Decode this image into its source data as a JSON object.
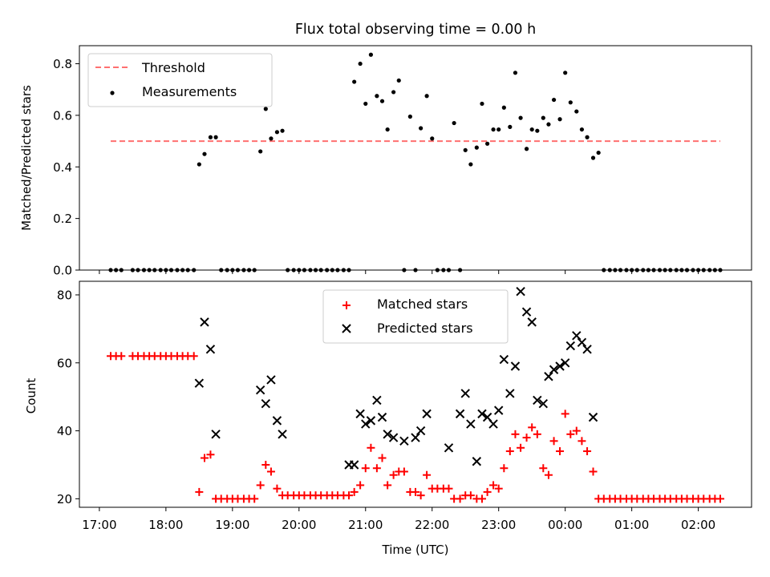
{
  "chart_data": [
    {
      "type": "scatter",
      "title": "Flux total observing time = 0.00 h",
      "ylabel": "Matched/Predicted stars",
      "xlabel": "",
      "x_unit": "hours after 17:00 UTC",
      "xlim": [
        -0.3,
        9.8
      ],
      "ylim": [
        0,
        0.87
      ],
      "yticks": [
        0.0,
        0.2,
        0.4,
        0.6,
        0.8
      ],
      "ytick_labels": [
        "0.0",
        "0.2",
        "0.4",
        "0.6",
        "0.8"
      ],
      "legend_position": "upper-left",
      "threshold": {
        "name": "Threshold",
        "value": 0.5,
        "x_start": 0.17,
        "x_end": 9.33,
        "color": "#ff7070"
      },
      "series": [
        {
          "name": "Measurements",
          "color": "#000000",
          "x": [
            0.17,
            0.25,
            0.33,
            0.5,
            0.58,
            0.67,
            0.75,
            0.83,
            0.92,
            1.0,
            1.08,
            1.17,
            1.25,
            1.33,
            1.42,
            1.5,
            1.58,
            1.67,
            1.75,
            1.83,
            1.92,
            2.0,
            2.08,
            2.17,
            2.25,
            2.33,
            2.42,
            2.5,
            2.58,
            2.67,
            2.75,
            2.83,
            2.92,
            3.0,
            3.08,
            3.17,
            3.25,
            3.33,
            3.42,
            3.5,
            3.58,
            3.67,
            3.75,
            3.83,
            3.92,
            4.0,
            4.08,
            4.17,
            4.25,
            4.33,
            4.42,
            4.5,
            4.58,
            4.67,
            4.75,
            4.83,
            4.92,
            5.0,
            5.08,
            5.17,
            5.25,
            5.33,
            5.42,
            5.5,
            5.58,
            5.67,
            5.75,
            5.83,
            5.92,
            6.0,
            6.08,
            6.17,
            6.25,
            6.33,
            6.42,
            6.5,
            6.58,
            6.67,
            6.75,
            6.83,
            6.92,
            7.0,
            7.08,
            7.17,
            7.25,
            7.33,
            7.42,
            7.5,
            7.58,
            7.67,
            7.75,
            7.83,
            7.92,
            8.0,
            8.08,
            8.17,
            8.25,
            8.33,
            8.42,
            8.5,
            8.58,
            8.67,
            8.75,
            8.83,
            8.92,
            9.0,
            9.08,
            9.17,
            9.25,
            9.33
          ],
          "y": [
            0,
            0,
            0,
            0,
            0,
            0,
            0,
            0,
            0,
            0,
            0,
            0,
            0,
            0,
            0,
            0.41,
            0.45,
            0.515,
            0.515,
            0,
            0,
            0,
            0,
            0,
            0,
            0,
            0.46,
            0.625,
            0.51,
            0.535,
            0.54,
            0,
            0,
            0,
            0,
            0,
            0,
            0,
            0,
            0,
            0,
            0,
            0,
            0.73,
            0.8,
            0.645,
            0.835,
            0.675,
            0.655,
            0.545,
            0.69,
            0.735,
            0,
            0.595,
            0,
            0.55,
            0.675,
            0.51,
            0,
            0,
            0,
            0.57,
            0,
            0.465,
            0.41,
            0.475,
            0.645,
            0.49,
            0.545,
            0.545,
            0.63,
            0.555,
            0.765,
            0.59,
            0.47,
            0.545,
            0.54,
            0.59,
            0.565,
            0.66,
            0.585,
            0.765,
            0.65,
            0.615,
            0.545,
            0.515,
            0.435,
            0.455,
            0,
            0,
            0,
            0,
            0,
            0,
            0,
            0,
            0,
            0,
            0,
            0,
            0,
            0,
            0,
            0,
            0,
            0,
            0,
            0,
            0,
            0
          ]
        }
      ]
    },
    {
      "type": "scatter",
      "title": "",
      "ylabel": "Count",
      "xlabel": "Time (UTC)",
      "x_unit": "hours after 17:00 UTC",
      "xlim": [
        -0.3,
        9.8
      ],
      "ylim": [
        17.5,
        84
      ],
      "yticks": [
        20,
        40,
        60,
        80
      ],
      "ytick_labels": [
        "20",
        "40",
        "60",
        "80"
      ],
      "xticks": [
        0,
        1,
        2,
        3,
        4,
        5,
        6,
        7,
        8,
        9
      ],
      "xtick_labels": [
        "17:00",
        "18:00",
        "19:00",
        "20:00",
        "21:00",
        "22:00",
        "23:00",
        "00:00",
        "01:00",
        "02:00"
      ],
      "legend_position": "upper-center",
      "series": [
        {
          "name": "Matched stars",
          "marker": "plus",
          "color": "#ff0000",
          "x": [
            0.17,
            0.25,
            0.33,
            0.5,
            0.58,
            0.67,
            0.75,
            0.83,
            0.92,
            1.0,
            1.08,
            1.17,
            1.25,
            1.33,
            1.42,
            1.5,
            1.58,
            1.67,
            1.75,
            1.83,
            1.92,
            2.0,
            2.08,
            2.17,
            2.25,
            2.33,
            2.42,
            2.5,
            2.58,
            2.67,
            2.75,
            2.83,
            2.92,
            3.0,
            3.08,
            3.17,
            3.25,
            3.33,
            3.42,
            3.5,
            3.58,
            3.67,
            3.75,
            3.83,
            3.92,
            4.0,
            4.08,
            4.17,
            4.25,
            4.33,
            4.42,
            4.5,
            4.58,
            4.67,
            4.75,
            4.83,
            4.92,
            5.0,
            5.08,
            5.17,
            5.25,
            5.33,
            5.42,
            5.5,
            5.58,
            5.67,
            5.75,
            5.83,
            5.92,
            6.0,
            6.08,
            6.17,
            6.25,
            6.33,
            6.42,
            6.5,
            6.58,
            6.67,
            6.75,
            6.83,
            6.92,
            7.0,
            7.08,
            7.17,
            7.25,
            7.33,
            7.42,
            7.5,
            7.58,
            7.67,
            7.75,
            7.83,
            7.92,
            8.0,
            8.08,
            8.17,
            8.25,
            8.33,
            8.42,
            8.5,
            8.58,
            8.67,
            8.75,
            8.83,
            8.92,
            9.0,
            9.08,
            9.17,
            9.25,
            9.33
          ],
          "y": [
            62,
            62,
            62,
            62,
            62,
            62,
            62,
            62,
            62,
            62,
            62,
            62,
            62,
            62,
            62,
            22,
            32,
            33,
            20,
            20,
            20,
            20,
            20,
            20,
            20,
            20,
            24,
            30,
            28,
            23,
            21,
            21,
            21,
            21,
            21,
            21,
            21,
            21,
            21,
            21,
            21,
            21,
            21,
            22,
            24,
            29,
            35,
            29,
            32,
            24,
            27,
            28,
            28,
            22,
            22,
            21,
            27,
            23,
            23,
            23,
            23,
            20,
            20,
            21,
            21,
            20,
            20,
            22,
            24,
            23,
            29,
            34,
            39,
            35,
            38,
            41,
            39,
            29,
            27,
            37,
            34,
            45,
            39,
            40,
            37,
            34,
            28,
            20,
            20,
            20,
            20,
            20,
            20,
            20,
            20,
            20,
            20,
            20,
            20,
            20,
            20,
            20,
            20,
            20,
            20,
            20,
            20,
            20,
            20,
            20
          ],
          "note_removed": null
        },
        {
          "name": "Predicted stars",
          "marker": "x",
          "color": "#000000",
          "x": [
            1.5,
            1.58,
            1.67,
            1.75,
            2.42,
            2.5,
            2.58,
            2.67,
            2.75,
            3.75,
            3.83,
            3.92,
            4.0,
            4.08,
            4.17,
            4.25,
            4.33,
            4.42,
            4.58,
            4.75,
            4.83,
            4.92,
            5.25,
            5.42,
            5.5,
            5.58,
            5.67,
            5.75,
            5.83,
            5.92,
            6.0,
            6.08,
            6.17,
            6.25,
            6.33,
            6.42,
            6.5,
            6.58,
            6.67,
            6.75,
            6.83,
            6.92,
            7.0,
            7.08,
            7.17,
            7.25,
            7.33,
            7.42
          ],
          "y": [
            54,
            72,
            64,
            39,
            52,
            48,
            55,
            43,
            39,
            30,
            30,
            45,
            42,
            43,
            49,
            44,
            39,
            38,
            37,
            38,
            40,
            45,
            35,
            45,
            51,
            42,
            31,
            45,
            44,
            42,
            46,
            61,
            51,
            59,
            81,
            75,
            72,
            49,
            48,
            56,
            58,
            59,
            60,
            65,
            68,
            66,
            64,
            44
          ]
        }
      ]
    }
  ]
}
